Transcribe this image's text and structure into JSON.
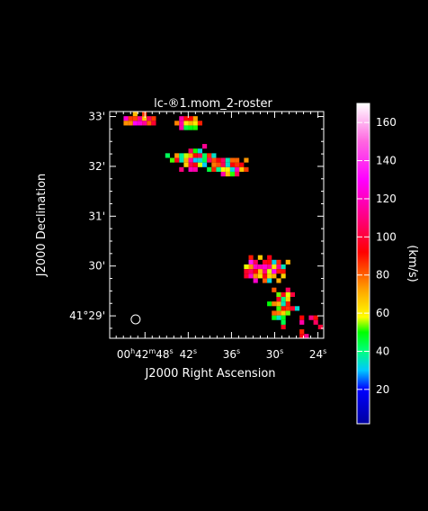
{
  "chart_data": {
    "type": "heatmap",
    "title": "lc-®1.mom_2-roster",
    "xlabel": "J2000 Right Ascension",
    "ylabel": "J2000 Declination",
    "x_ticks": [
      {
        "ra_s": 48,
        "label": "00h42m48s",
        "parts": {
          "hh": "00",
          "mm": "42",
          "ss": "48"
        }
      },
      {
        "ra_s": 42,
        "label": "42s",
        "parts": {
          "ss": "42"
        }
      },
      {
        "ra_s": 36,
        "label": "36s",
        "parts": {
          "ss": "36"
        }
      },
      {
        "ra_s": 30,
        "label": "30s",
        "parts": {
          "ss": "30"
        }
      },
      {
        "ra_s": 24,
        "label": "24s",
        "parts": {
          "ss": "24"
        }
      }
    ],
    "y_ticks": [
      {
        "dec_min": 33,
        "label": "33'"
      },
      {
        "dec_min": 32,
        "label": "32'"
      },
      {
        "dec_min": 31,
        "label": "31'"
      },
      {
        "dec_min": 30,
        "label": "30'"
      },
      {
        "dec_min": 29,
        "label": "41°29'"
      }
    ],
    "xlim": [
      52.9,
      23.2
    ],
    "ylim": [
      28.55,
      33.1
    ],
    "beam": {
      "ra_s": 49.3,
      "dec_min": 28.93
    },
    "colorbar": {
      "label": "(km/s)",
      "range": [
        2,
        170
      ],
      "ticks": [
        20,
        40,
        60,
        80,
        100,
        120,
        140,
        160
      ],
      "stops": [
        [
          2,
          "#0000a0"
        ],
        [
          20,
          "#0000ff"
        ],
        [
          30,
          "#00c8ff"
        ],
        [
          40,
          "#00ff7f"
        ],
        [
          50,
          "#00ff00"
        ],
        [
          58,
          "#ffff00"
        ],
        [
          72,
          "#ffa500"
        ],
        [
          92,
          "#ff0000"
        ],
        [
          110,
          "#ff007f"
        ],
        [
          130,
          "#ff00ff"
        ],
        [
          150,
          "#ff66e0"
        ],
        [
          170,
          "#ffffff"
        ]
      ]
    },
    "clusters": [
      {
        "name": "",
        "center": [
          49.0,
          32.98
        ],
        "spread": [
          1.6,
          0.09
        ],
        "n": 16,
        "v": [
          65,
          130
        ]
      },
      {
        "name": "",
        "center": [
          42.1,
          32.9
        ],
        "spread": [
          1.3,
          0.11
        ],
        "n": 14,
        "v": [
          45,
          120
        ]
      },
      {
        "name": "",
        "center": [
          41.5,
          32.18
        ],
        "spread": [
          2.3,
          0.17
        ],
        "n": 34,
        "v": [
          30,
          120
        ]
      },
      {
        "name": "",
        "center": [
          36.4,
          32.05
        ],
        "spread": [
          2.0,
          0.12
        ],
        "n": 24,
        "v": [
          30,
          120
        ]
      },
      {
        "name": "",
        "center": [
          31.4,
          29.96
        ],
        "spread": [
          2.3,
          0.22
        ],
        "n": 40,
        "v": [
          30,
          140
        ]
      },
      {
        "name": "",
        "center": [
          29.2,
          29.22
        ],
        "spread": [
          1.2,
          0.32
        ],
        "n": 28,
        "v": [
          30,
          110
        ]
      },
      {
        "name": "",
        "center": [
          26.0,
          28.82
        ],
        "spread": [
          1.8,
          0.18
        ],
        "n": 9,
        "v": [
          60,
          130
        ]
      }
    ],
    "grid": false
  }
}
